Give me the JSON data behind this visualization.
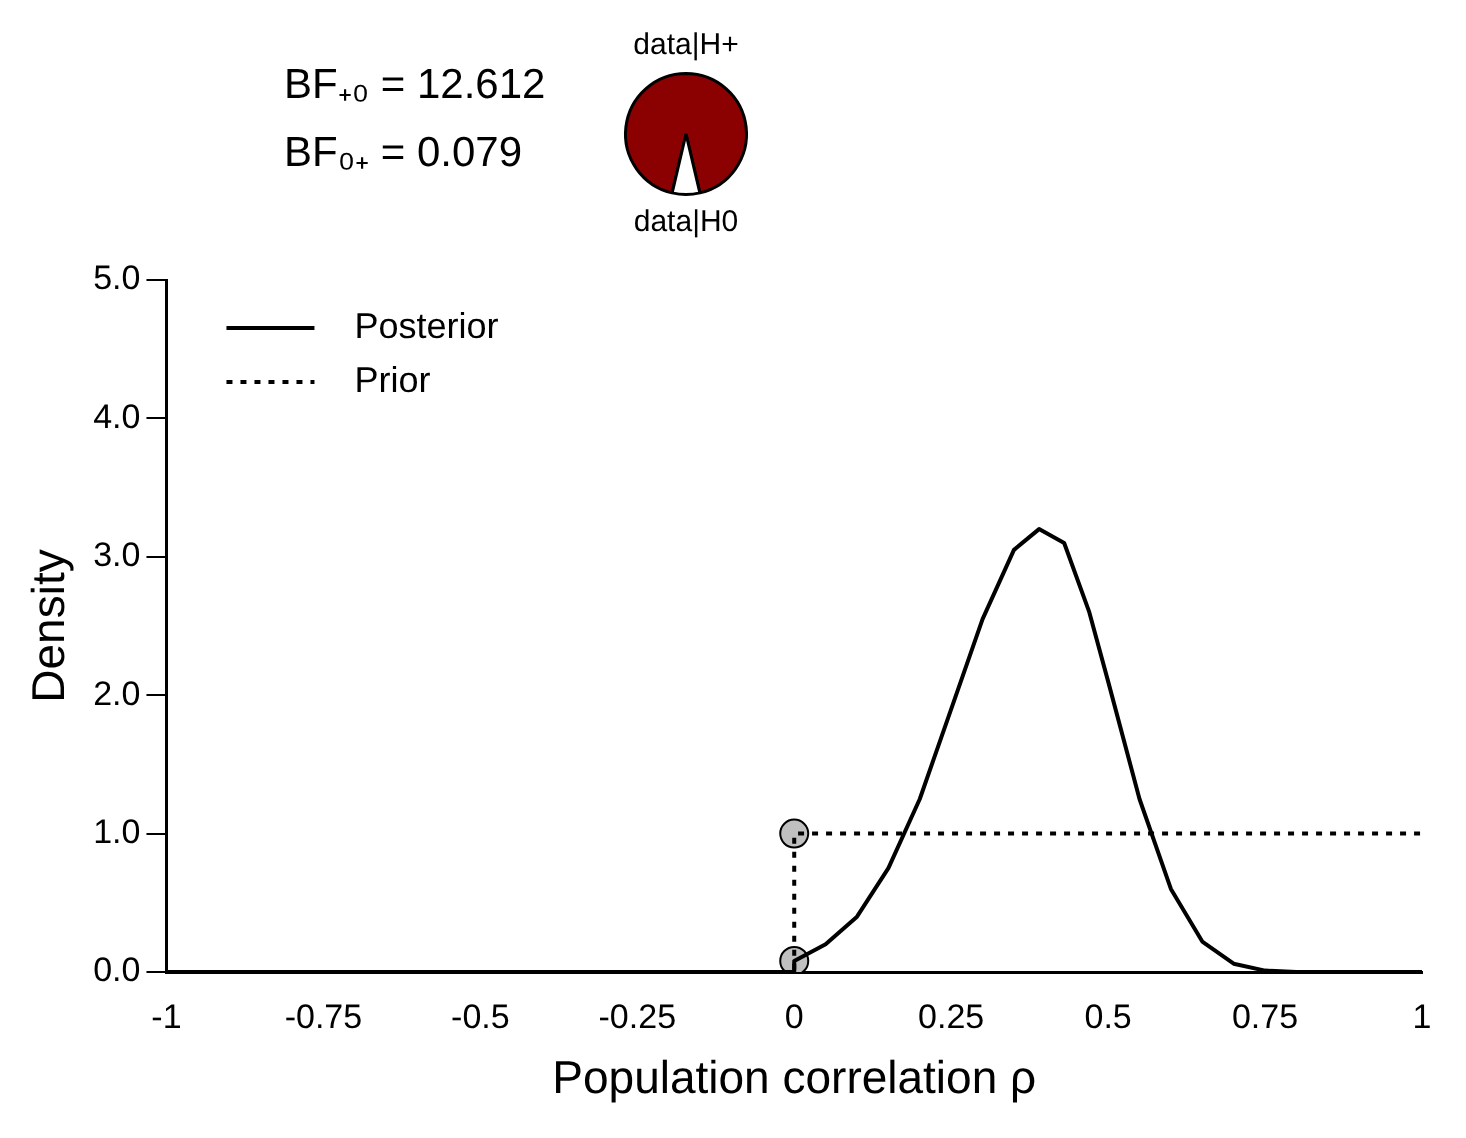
{
  "chart_data": [
    {
      "type": "pie",
      "categories": [
        "data|H+",
        "data|H0"
      ],
      "values": [
        92.65,
        7.35
      ],
      "colors": [
        "#8b0000",
        "#ffffff"
      ],
      "annotations": [
        "BF₊₀ = 12.612",
        "BF₀₊ = 0.079"
      ]
    },
    {
      "type": "line",
      "xlabel": "Population correlation ρ",
      "ylabel": "Density",
      "xlim": [
        -1,
        1
      ],
      "xticks": [
        -1,
        -0.75,
        -0.5,
        -0.25,
        0,
        0.25,
        0.5,
        0.75,
        1
      ],
      "ylim": [
        0,
        5
      ],
      "yticks": [
        {
          "value": 0,
          "label": "0.0"
        },
        {
          "value": 1,
          "label": "1.0"
        },
        {
          "value": 2,
          "label": "2.0"
        },
        {
          "value": 3,
          "label": "3.0"
        },
        {
          "value": 4,
          "label": "4.0"
        },
        {
          "value": 5,
          "label": "5.0"
        }
      ],
      "grid": false,
      "legend": "top left",
      "series": [
        {
          "name": "Posterior",
          "type": "line",
          "line_style": "solid",
          "color": "#000000",
          "x": [
            -1,
            0,
            0,
            0.05,
            0.1,
            0.15,
            0.2,
            0.25,
            0.3,
            0.35,
            0.39,
            0.43,
            0.47,
            0.5,
            0.55,
            0.6,
            0.65,
            0.7,
            0.75,
            0.8,
            1
          ],
          "values": [
            0,
            0,
            0.08,
            0.2,
            0.4,
            0.75,
            1.25,
            1.9,
            2.55,
            3.05,
            3.2,
            3.1,
            2.6,
            2.1,
            1.25,
            0.6,
            0.22,
            0.06,
            0.01,
            0,
            0
          ]
        },
        {
          "name": "Prior",
          "type": "line",
          "line_style": "dotted",
          "color": "#000000",
          "x": [
            -1,
            0,
            0,
            1
          ],
          "values": [
            0,
            0,
            1,
            1
          ]
        },
        {
          "type": "scatter",
          "marker": "circle",
          "color": "#c0c0c0",
          "x": [
            0,
            0
          ],
          "values": [
            0.08,
            1
          ]
        }
      ]
    }
  ]
}
